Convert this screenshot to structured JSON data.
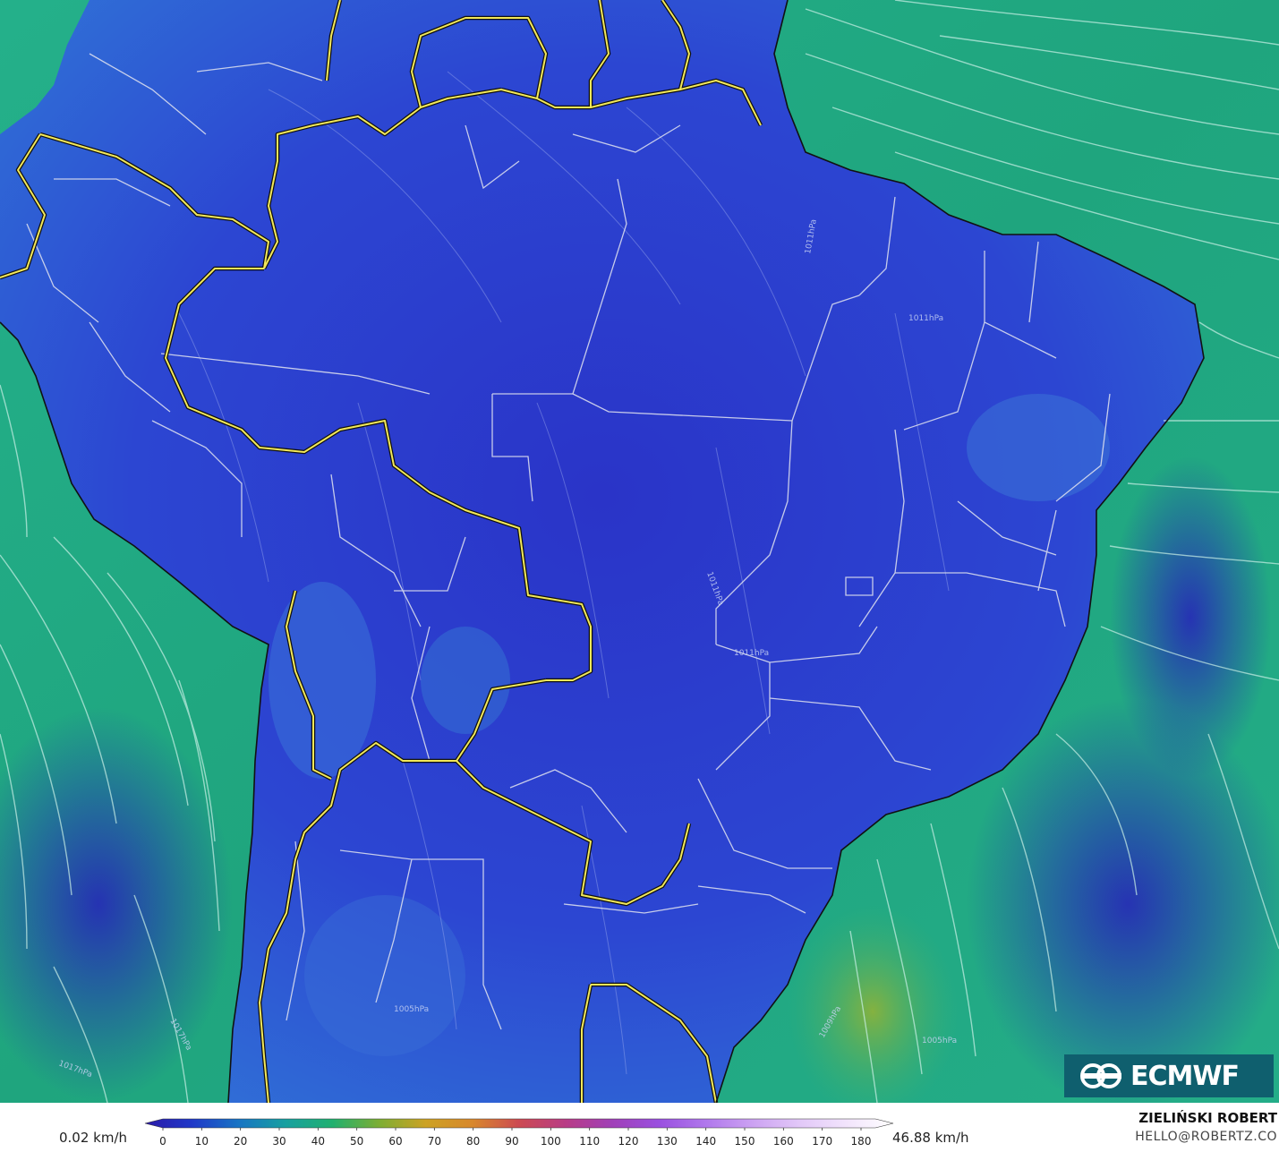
{
  "legend": {
    "min_label": "0.02 km/h",
    "max_label": "46.88 km/h",
    "ticks": [
      "0",
      "10",
      "20",
      "30",
      "40",
      "50",
      "60",
      "70",
      "80",
      "90",
      "100",
      "110",
      "120",
      "130",
      "140",
      "150",
      "160",
      "170",
      "180"
    ],
    "colors": [
      "#2b1aa8",
      "#2038c8",
      "#1874c4",
      "#18a0a0",
      "#20b070",
      "#7cae34",
      "#cca224",
      "#d8882c",
      "#cc4a52",
      "#b83c86",
      "#a040b8",
      "#9a50e0",
      "#b078ec",
      "#cca2f2",
      "#e2c8f8",
      "#f2e4fc",
      "#ffffff"
    ]
  },
  "map": {
    "land_color": "#2a3bd0",
    "land_color_light": "#2f6ad8",
    "ocean_color": "#1fa57e",
    "ocean_color_light": "#2bbd96",
    "highlight_color": "#8ab23c",
    "border_color": "#f2e85a",
    "state_line_color": "#e2e4f0",
    "streamline_color": "#c9f0e6",
    "isobar_labels": [
      "1011hPa",
      "1011hPa",
      "1011hPa",
      "1011hPa",
      "1017hPa",
      "1017hPa",
      "1009hPa",
      "1005hPa",
      "1005hPa"
    ]
  },
  "logo": {
    "text": "ECMWF"
  },
  "credits": {
    "author": "ZIELIŃSKI ROBERT",
    "email": "HELLO@ROBERTZ.CO"
  }
}
